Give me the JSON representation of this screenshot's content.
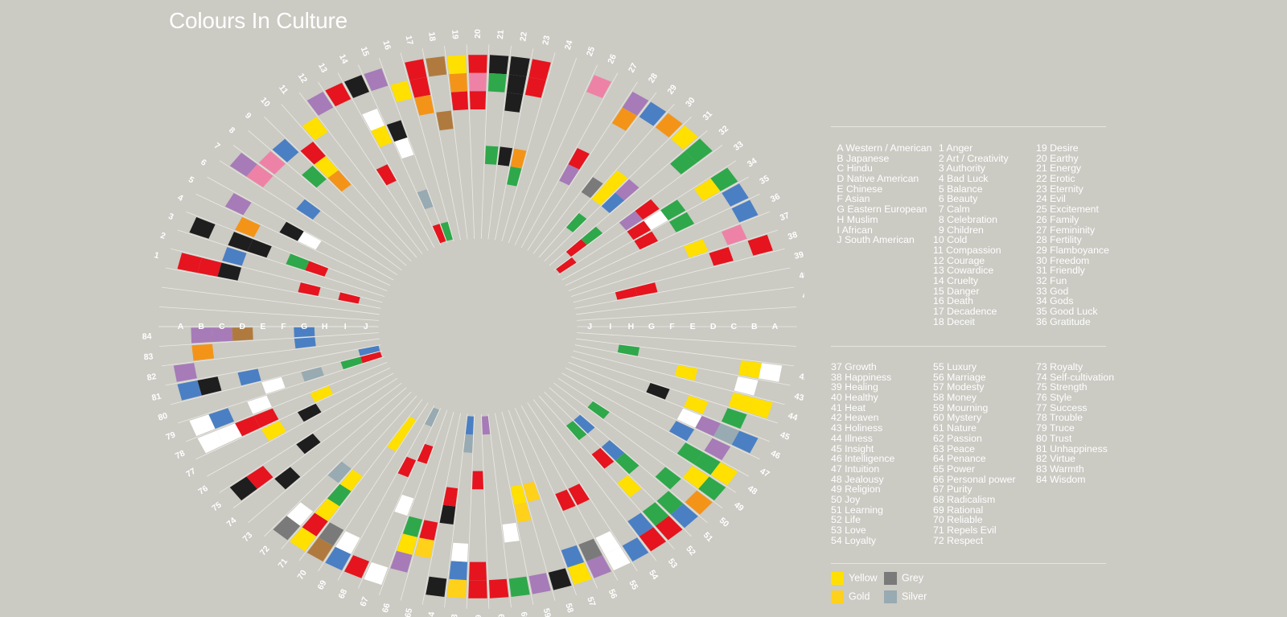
{
  "title": "Colours In Culture",
  "cultures": [
    {
      "letter": "A",
      "name": "Western / American"
    },
    {
      "letter": "B",
      "name": "Japanese"
    },
    {
      "letter": "C",
      "name": "Hindu"
    },
    {
      "letter": "D",
      "name": "Native American"
    },
    {
      "letter": "E",
      "name": "Chinese"
    },
    {
      "letter": "F",
      "name": "Asian"
    },
    {
      "letter": "G",
      "name": "Eastern European"
    },
    {
      "letter": "H",
      "name": "Muslim"
    },
    {
      "letter": "I",
      "name": "African"
    },
    {
      "letter": "J",
      "name": "South American"
    }
  ],
  "meanings": [
    "Anger",
    "Art / Creativity",
    "Authority",
    "Bad Luck",
    "Balance",
    "Beauty",
    "Calm",
    "Celebration",
    "Children",
    "Cold",
    "Compassion",
    "Courage",
    "Cowardice",
    "Cruelty",
    "Danger",
    "Death",
    "Decadence",
    "Deceit",
    "Desire",
    "Earthy",
    "Energy",
    "Erotic",
    "Eternity",
    "Evil",
    "Excitement",
    "Family",
    "Femininity",
    "Fertility",
    "Flamboyance",
    "Freedom",
    "Friendly",
    "Fun",
    "God",
    "Gods",
    "Good Luck",
    "Gratitude",
    "Growth",
    "Happiness",
    "Healing",
    "Healthy",
    "Heat",
    "Heaven",
    "Holiness",
    "Illness",
    "Insight",
    "Intelligence",
    "Intuition",
    "Jealousy",
    "Religion",
    "Joy",
    "Learning",
    "Life",
    "Love",
    "Loyalty",
    "Luxury",
    "Marriage",
    "Modesty",
    "Money",
    "Mourning",
    "Mystery",
    "Nature",
    "Passion",
    "Peace",
    "Penance",
    "Power",
    "Personal power",
    "Purity",
    "Radicalism",
    "Rational",
    "Reliable",
    "Repels Evil",
    "Respect",
    "Royalty",
    "Self-cultivation",
    "Strength",
    "Style",
    "Success",
    "Trouble",
    "Truce",
    "Trust",
    "Unhappiness",
    "Virtue",
    "Warmth",
    "Wisdom"
  ],
  "colour_key": [
    {
      "name": "Yellow",
      "hex": "#ffe000"
    },
    {
      "name": "Grey",
      "hex": "#7a7a7a"
    },
    {
      "name": "Gold",
      "hex": "#ffd11a"
    },
    {
      "name": "Silver",
      "hex": "#98aab2"
    }
  ],
  "chart_data": {
    "type": "radial-grid",
    "title": "Colours In Culture",
    "ring_labels": [
      "A",
      "B",
      "C",
      "D",
      "E",
      "F",
      "G",
      "H",
      "I",
      "J"
    ],
    "sector_labels": [
      "1",
      "2",
      "3",
      "4",
      "5",
      "6",
      "7",
      "8",
      "9",
      "10",
      "11",
      "12",
      "13",
      "14",
      "15",
      "16",
      "17",
      "18",
      "19",
      "20",
      "21",
      "22",
      "23",
      "24",
      "25",
      "26",
      "27",
      "28",
      "29",
      "30",
      "31",
      "32",
      "33",
      "34",
      "35",
      "36",
      "37",
      "38",
      "39",
      "40",
      "41",
      "42",
      "43",
      "44",
      "45",
      "46",
      "47",
      "48",
      "49",
      "50",
      "51",
      "52",
      "53",
      "54",
      "55",
      "56",
      "57",
      "58",
      "59",
      "60",
      "61",
      "62",
      "63",
      "64",
      "65",
      "66",
      "67",
      "68",
      "69",
      "70",
      "71",
      "72",
      "73",
      "74",
      "75",
      "76",
      "77",
      "78",
      "79",
      "80",
      "81",
      "82",
      "83",
      "84"
    ],
    "palette": {
      "red": "#e5141e",
      "black": "#1e1e1e",
      "yellow": "#ffe000",
      "gold": "#ffd11a",
      "white": "#ffffff",
      "green": "#2ea84a",
      "blue": "#4a7fc4",
      "purple": "#a67bb8",
      "pink": "#ee82a6",
      "orange": "#f39418",
      "brown": "#b07a3e",
      "grey": "#7a7a7a",
      "silver": "#98aab2"
    },
    "cells": [
      [
        1,
        "A",
        "red"
      ],
      [
        1,
        "B",
        "red"
      ],
      [
        1,
        "C",
        "black"
      ],
      [
        1,
        "G",
        "red"
      ],
      [
        1,
        "I",
        "red"
      ],
      [
        2,
        "C",
        "blue"
      ],
      [
        3,
        "A",
        "black"
      ],
      [
        3,
        "C",
        "black"
      ],
      [
        3,
        "D",
        "black"
      ],
      [
        3,
        "F",
        "green"
      ],
      [
        3,
        "G",
        "red"
      ],
      [
        4,
        "C",
        "orange"
      ],
      [
        5,
        "B",
        "purple"
      ],
      [
        5,
        "E",
        "black"
      ],
      [
        5,
        "F",
        "white"
      ],
      [
        7,
        "A",
        "purple"
      ],
      [
        7,
        "B",
        "pink"
      ],
      [
        7,
        "E",
        "blue"
      ],
      [
        8,
        "B",
        "pink"
      ],
      [
        9,
        "B",
        "blue"
      ],
      [
        9,
        "D",
        "green"
      ],
      [
        10,
        "C",
        "red"
      ],
      [
        10,
        "D",
        "yellow"
      ],
      [
        10,
        "E",
        "orange"
      ],
      [
        11,
        "B",
        "yellow"
      ],
      [
        12,
        "A",
        "purple"
      ],
      [
        13,
        "A",
        "red"
      ],
      [
        13,
        "F",
        "red"
      ],
      [
        14,
        "A",
        "black"
      ],
      [
        14,
        "C",
        "white"
      ],
      [
        14,
        "D",
        "yellow"
      ],
      [
        15,
        "A",
        "purple"
      ],
      [
        15,
        "D",
        "black"
      ],
      [
        15,
        "E",
        "white"
      ],
      [
        15,
        "H",
        "silver"
      ],
      [
        15,
        "J",
        "red"
      ],
      [
        16,
        "B",
        "yellow"
      ],
      [
        16,
        "J",
        "green"
      ],
      [
        17,
        "A",
        "red"
      ],
      [
        17,
        "B",
        "red"
      ],
      [
        17,
        "C",
        "orange"
      ],
      [
        18,
        "A",
        "brown"
      ],
      [
        18,
        "D",
        "brown"
      ],
      [
        19,
        "A",
        "yellow"
      ],
      [
        19,
        "B",
        "orange"
      ],
      [
        19,
        "C",
        "red"
      ],
      [
        20,
        "A",
        "red"
      ],
      [
        20,
        "B",
        "pink"
      ],
      [
        20,
        "C",
        "red"
      ],
      [
        21,
        "A",
        "black"
      ],
      [
        21,
        "B",
        "green"
      ],
      [
        21,
        "F",
        "green"
      ],
      [
        22,
        "A",
        "black"
      ],
      [
        22,
        "B",
        "black"
      ],
      [
        22,
        "C",
        "black"
      ],
      [
        22,
        "F",
        "black"
      ],
      [
        23,
        "A",
        "red"
      ],
      [
        23,
        "B",
        "red"
      ],
      [
        23,
        "F",
        "orange"
      ],
      [
        23,
        "G",
        "green"
      ],
      [
        26,
        "A",
        "pink"
      ],
      [
        27,
        "E",
        "red"
      ],
      [
        27,
        "F",
        "purple"
      ],
      [
        28,
        "A",
        "purple"
      ],
      [
        28,
        "B",
        "orange"
      ],
      [
        29,
        "A",
        "blue"
      ],
      [
        29,
        "F",
        "grey"
      ],
      [
        30,
        "A",
        "orange"
      ],
      [
        30,
        "E",
        "yellow"
      ],
      [
        30,
        "F",
        "yellow"
      ],
      [
        30,
        "H",
        "green"
      ],
      [
        31,
        "A",
        "yellow"
      ],
      [
        31,
        "E",
        "purple"
      ],
      [
        31,
        "F",
        "blue"
      ],
      [
        32,
        "A",
        "green"
      ],
      [
        32,
        "B",
        "green"
      ],
      [
        32,
        "H",
        "green"
      ],
      [
        32,
        "I",
        "red"
      ],
      [
        33,
        "E",
        "red"
      ],
      [
        33,
        "F",
        "purple"
      ],
      [
        33,
        "J",
        "red"
      ],
      [
        34,
        "A",
        "green"
      ],
      [
        34,
        "B",
        "yellow"
      ],
      [
        34,
        "D",
        "green"
      ],
      [
        34,
        "E",
        "white"
      ],
      [
        34,
        "F",
        "red"
      ],
      [
        35,
        "A",
        "blue"
      ],
      [
        35,
        "D",
        "green"
      ],
      [
        35,
        "F",
        "red"
      ],
      [
        36,
        "A",
        "blue"
      ],
      [
        37,
        "B",
        "pink"
      ],
      [
        37,
        "D",
        "yellow"
      ],
      [
        38,
        "A",
        "red"
      ],
      [
        38,
        "C",
        "red"
      ],
      [
        39,
        "G",
        "red"
      ],
      [
        39,
        "H",
        "red"
      ],
      [
        42,
        "A",
        "white"
      ],
      [
        42,
        "B",
        "yellow"
      ],
      [
        42,
        "H",
        "green"
      ],
      [
        43,
        "B",
        "white"
      ],
      [
        43,
        "E",
        "yellow"
      ],
      [
        44,
        "A",
        "yellow"
      ],
      [
        44,
        "B",
        "yellow"
      ],
      [
        45,
        "B",
        "green"
      ],
      [
        45,
        "D",
        "yellow"
      ],
      [
        45,
        "F",
        "black"
      ],
      [
        46,
        "A",
        "blue"
      ],
      [
        46,
        "B",
        "silver"
      ],
      [
        46,
        "C",
        "purple"
      ],
      [
        46,
        "D",
        "white"
      ],
      [
        47,
        "B",
        "purple"
      ],
      [
        47,
        "D",
        "blue"
      ],
      [
        48,
        "A",
        "yellow"
      ],
      [
        48,
        "B",
        "green"
      ],
      [
        48,
        "C",
        "green"
      ],
      [
        49,
        "A",
        "green"
      ],
      [
        49,
        "B",
        "yellow"
      ],
      [
        49,
        "H",
        "green"
      ],
      [
        50,
        "A",
        "orange"
      ],
      [
        50,
        "C",
        "green"
      ],
      [
        51,
        "A",
        "blue"
      ],
      [
        51,
        "B",
        "green"
      ],
      [
        51,
        "E",
        "green"
      ],
      [
        51,
        "F",
        "blue"
      ],
      [
        51,
        "H",
        "blue"
      ],
      [
        52,
        "A",
        "red"
      ],
      [
        52,
        "B",
        "green"
      ],
      [
        52,
        "D",
        "yellow"
      ],
      [
        52,
        "F",
        "red"
      ],
      [
        52,
        "H",
        "green"
      ],
      [
        53,
        "A",
        "red"
      ],
      [
        53,
        "B",
        "blue"
      ],
      [
        54,
        "A",
        "blue"
      ],
      [
        55,
        "A",
        "white"
      ],
      [
        55,
        "B",
        "white"
      ],
      [
        55,
        "E",
        "red"
      ],
      [
        56,
        "A",
        "purple"
      ],
      [
        56,
        "B",
        "grey"
      ],
      [
        56,
        "E",
        "red"
      ],
      [
        57,
        "A",
        "yellow"
      ],
      [
        57,
        "B",
        "blue"
      ],
      [
        58,
        "A",
        "black"
      ],
      [
        58,
        "F",
        "gold"
      ],
      [
        59,
        "A",
        "purple"
      ],
      [
        59,
        "E",
        "gold"
      ],
      [
        59,
        "F",
        "yellow"
      ],
      [
        60,
        "A",
        "green"
      ],
      [
        60,
        "D",
        "white"
      ],
      [
        61,
        "A",
        "red"
      ],
      [
        61,
        "J",
        "purple"
      ],
      [
        62,
        "A",
        "red"
      ],
      [
        62,
        "B",
        "red"
      ],
      [
        62,
        "G",
        "red"
      ],
      [
        63,
        "A",
        "gold"
      ],
      [
        63,
        "B",
        "blue"
      ],
      [
        63,
        "C",
        "white"
      ],
      [
        63,
        "I",
        "silver"
      ],
      [
        63,
        "J",
        "blue"
      ],
      [
        64,
        "A",
        "black"
      ],
      [
        64,
        "E",
        "black"
      ],
      [
        64,
        "F",
        "red"
      ],
      [
        65,
        "C",
        "gold"
      ],
      [
        65,
        "D",
        "red"
      ],
      [
        66,
        "B",
        "purple"
      ],
      [
        66,
        "C",
        "yellow"
      ],
      [
        66,
        "D",
        "green"
      ],
      [
        67,
        "A",
        "white"
      ],
      [
        67,
        "E",
        "white"
      ],
      [
        67,
        "H",
        "red"
      ],
      [
        68,
        "A",
        "red"
      ],
      [
        68,
        "G",
        "red"
      ],
      [
        68,
        "J",
        "silver"
      ],
      [
        69,
        "A",
        "blue"
      ],
      [
        69,
        "B",
        "white"
      ],
      [
        70,
        "A",
        "brown"
      ],
      [
        70,
        "B",
        "grey"
      ],
      [
        70,
        "H",
        "yellow"
      ],
      [
        70,
        "I",
        "yellow"
      ],
      [
        71,
        "A",
        "yellow"
      ],
      [
        71,
        "B",
        "red"
      ],
      [
        71,
        "C",
        "yellow"
      ],
      [
        71,
        "D",
        "green"
      ],
      [
        71,
        "E",
        "yellow"
      ],
      [
        72,
        "A",
        "grey"
      ],
      [
        72,
        "B",
        "white"
      ],
      [
        72,
        "E",
        "silver"
      ],
      [
        74,
        "C",
        "black"
      ],
      [
        75,
        "A",
        "black"
      ],
      [
        75,
        "B",
        "red"
      ],
      [
        75,
        "E",
        "black"
      ],
      [
        77,
        "D",
        "yellow"
      ],
      [
        77,
        "F",
        "black"
      ],
      [
        78,
        "A",
        "white"
      ],
      [
        78,
        "B",
        "white"
      ],
      [
        78,
        "C",
        "red"
      ],
      [
        78,
        "D",
        "red"
      ],
      [
        78,
        "G",
        "yellow"
      ],
      [
        79,
        "A",
        "white"
      ],
      [
        79,
        "B",
        "blue"
      ],
      [
        79,
        "D",
        "white"
      ],
      [
        80,
        "E",
        "white"
      ],
      [
        80,
        "G",
        "silver"
      ],
      [
        80,
        "I",
        "green"
      ],
      [
        80,
        "J",
        "red"
      ],
      [
        81,
        "A",
        "blue"
      ],
      [
        81,
        "B",
        "black"
      ],
      [
        81,
        "D",
        "blue"
      ],
      [
        81,
        "J",
        "blue"
      ],
      [
        82,
        "A",
        "purple"
      ],
      [
        83,
        "B",
        "orange"
      ],
      [
        83,
        "G",
        "blue"
      ],
      [
        84,
        "B",
        "purple"
      ],
      [
        84,
        "C",
        "purple"
      ],
      [
        84,
        "D",
        "brown"
      ],
      [
        84,
        "G",
        "blue"
      ]
    ]
  }
}
